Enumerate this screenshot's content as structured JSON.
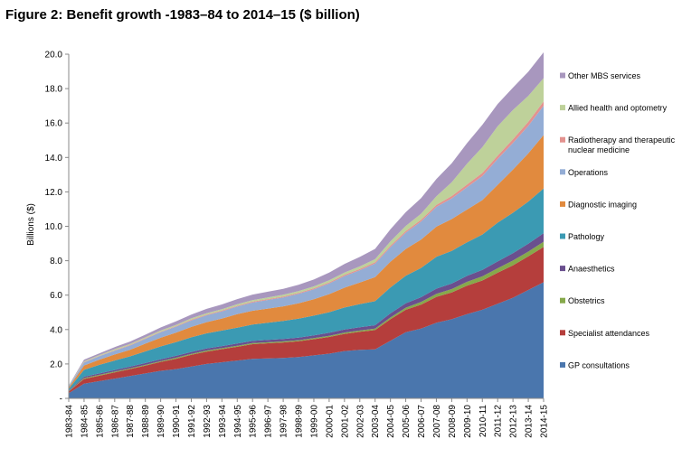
{
  "title": "Figure 2: Benefit growth -1983–84 to 2014–15 ($ billion)",
  "chart_data": {
    "type": "area",
    "stacked": true,
    "title": "Figure 2: Benefit growth -1983–84 to 2014–15 ($ billion)",
    "ylabel": "Billions ($)",
    "xlabel": "",
    "ylim": [
      0,
      20
    ],
    "yticks": [
      "-",
      "2.0",
      "4.0",
      "6.0",
      "8.0",
      "10.0",
      "12.0",
      "14.0",
      "16.0",
      "18.0",
      "20.0"
    ],
    "grid": false,
    "legend_position": "right",
    "categories": [
      "1983-84",
      "1984-85",
      "1985-86",
      "1986-87",
      "1987-88",
      "1988-89",
      "1989-90",
      "1990-91",
      "1991-92",
      "1992-93",
      "1993-94",
      "1994-95",
      "1995-96",
      "1996-97",
      "1997-98",
      "1998-99",
      "1999-00",
      "2000-01",
      "2001-02",
      "2002-03",
      "2003-04",
      "2004-05",
      "2005-06",
      "2006-07",
      "2007-08",
      "2008-09",
      "2009-10",
      "2010-11",
      "2011-12",
      "2012-13",
      "2013-14",
      "2014-15"
    ],
    "series": [
      {
        "name": "GP consultations",
        "color": "#4a76ad",
        "values": [
          0.3,
          0.85,
          1.0,
          1.15,
          1.3,
          1.45,
          1.6,
          1.7,
          1.85,
          2.0,
          2.1,
          2.2,
          2.3,
          2.32,
          2.35,
          2.4,
          2.5,
          2.6,
          2.75,
          2.82,
          2.85,
          3.35,
          3.85,
          4.05,
          4.4,
          4.6,
          4.9,
          5.15,
          5.5,
          5.85,
          6.3,
          6.75
        ]
      },
      {
        "name": "Specialist attendances",
        "color": "#b53e3c",
        "values": [
          0.1,
          0.28,
          0.32,
          0.36,
          0.4,
          0.45,
          0.52,
          0.6,
          0.68,
          0.72,
          0.76,
          0.8,
          0.85,
          0.88,
          0.9,
          0.92,
          0.94,
          0.97,
          1.0,
          1.05,
          1.12,
          1.25,
          1.3,
          1.4,
          1.5,
          1.55,
          1.65,
          1.7,
          1.8,
          1.88,
          1.95,
          2.05
        ]
      },
      {
        "name": "Obstetrics",
        "color": "#86a94b",
        "values": [
          0.02,
          0.05,
          0.05,
          0.05,
          0.05,
          0.05,
          0.05,
          0.06,
          0.06,
          0.06,
          0.06,
          0.06,
          0.06,
          0.06,
          0.06,
          0.06,
          0.06,
          0.07,
          0.07,
          0.07,
          0.08,
          0.1,
          0.12,
          0.15,
          0.18,
          0.2,
          0.22,
          0.24,
          0.26,
          0.28,
          0.28,
          0.3
        ]
      },
      {
        "name": "Anaesthetics",
        "color": "#6a4f8e",
        "values": [
          0.03,
          0.08,
          0.08,
          0.09,
          0.09,
          0.1,
          0.1,
          0.11,
          0.11,
          0.12,
          0.12,
          0.13,
          0.13,
          0.14,
          0.14,
          0.15,
          0.16,
          0.17,
          0.18,
          0.19,
          0.2,
          0.24,
          0.26,
          0.28,
          0.3,
          0.32,
          0.35,
          0.38,
          0.4,
          0.43,
          0.46,
          0.5
        ]
      },
      {
        "name": "Pathology",
        "color": "#3b9ab3",
        "values": [
          0.1,
          0.4,
          0.5,
          0.55,
          0.6,
          0.68,
          0.75,
          0.8,
          0.85,
          0.88,
          0.9,
          0.92,
          0.95,
          1.0,
          1.05,
          1.1,
          1.15,
          1.2,
          1.28,
          1.35,
          1.4,
          1.5,
          1.6,
          1.7,
          1.85,
          1.9,
          1.95,
          2.05,
          2.25,
          2.35,
          2.45,
          2.6
        ]
      },
      {
        "name": "Diagnostic imaging",
        "color": "#e18a3e",
        "values": [
          0.08,
          0.25,
          0.3,
          0.35,
          0.38,
          0.45,
          0.5,
          0.55,
          0.6,
          0.65,
          0.7,
          0.78,
          0.8,
          0.82,
          0.85,
          0.9,
          0.95,
          1.05,
          1.15,
          1.25,
          1.4,
          1.5,
          1.55,
          1.65,
          1.75,
          1.85,
          1.9,
          2.0,
          2.2,
          2.5,
          2.8,
          3.1
        ]
      },
      {
        "name": "Operations",
        "color": "#94add5",
        "values": [
          0.06,
          0.18,
          0.2,
          0.22,
          0.25,
          0.28,
          0.32,
          0.35,
          0.38,
          0.4,
          0.42,
          0.45,
          0.48,
          0.5,
          0.52,
          0.55,
          0.58,
          0.62,
          0.68,
          0.72,
          0.78,
          0.85,
          0.95,
          1.05,
          1.15,
          1.2,
          1.3,
          1.4,
          1.5,
          1.55,
          1.6,
          1.7
        ]
      },
      {
        "name": "Radiotherapy and therapeutic nuclear medicine",
        "color": "#e3928f",
        "values": [
          0.01,
          0.02,
          0.02,
          0.03,
          0.03,
          0.03,
          0.03,
          0.03,
          0.04,
          0.04,
          0.04,
          0.04,
          0.05,
          0.05,
          0.05,
          0.05,
          0.06,
          0.06,
          0.07,
          0.07,
          0.08,
          0.08,
          0.09,
          0.1,
          0.12,
          0.14,
          0.16,
          0.18,
          0.2,
          0.22,
          0.24,
          0.26
        ]
      },
      {
        "name": "Allied health and optometry",
        "color": "#bed19a",
        "values": [
          0.02,
          0.05,
          0.05,
          0.06,
          0.06,
          0.06,
          0.07,
          0.07,
          0.08,
          0.08,
          0.08,
          0.09,
          0.09,
          0.1,
          0.1,
          0.1,
          0.11,
          0.12,
          0.13,
          0.15,
          0.18,
          0.25,
          0.3,
          0.35,
          0.5,
          0.8,
          1.2,
          1.5,
          1.7,
          1.7,
          1.5,
          1.35
        ]
      },
      {
        "name": "Other MBS services",
        "color": "#a897be",
        "values": [
          0.03,
          0.09,
          0.1,
          0.12,
          0.14,
          0.15,
          0.18,
          0.2,
          0.22,
          0.25,
          0.28,
          0.3,
          0.32,
          0.33,
          0.35,
          0.37,
          0.4,
          0.45,
          0.5,
          0.55,
          0.6,
          0.7,
          0.8,
          0.9,
          1.0,
          1.1,
          1.2,
          1.3,
          1.3,
          1.3,
          1.4,
          1.5
        ]
      }
    ]
  }
}
